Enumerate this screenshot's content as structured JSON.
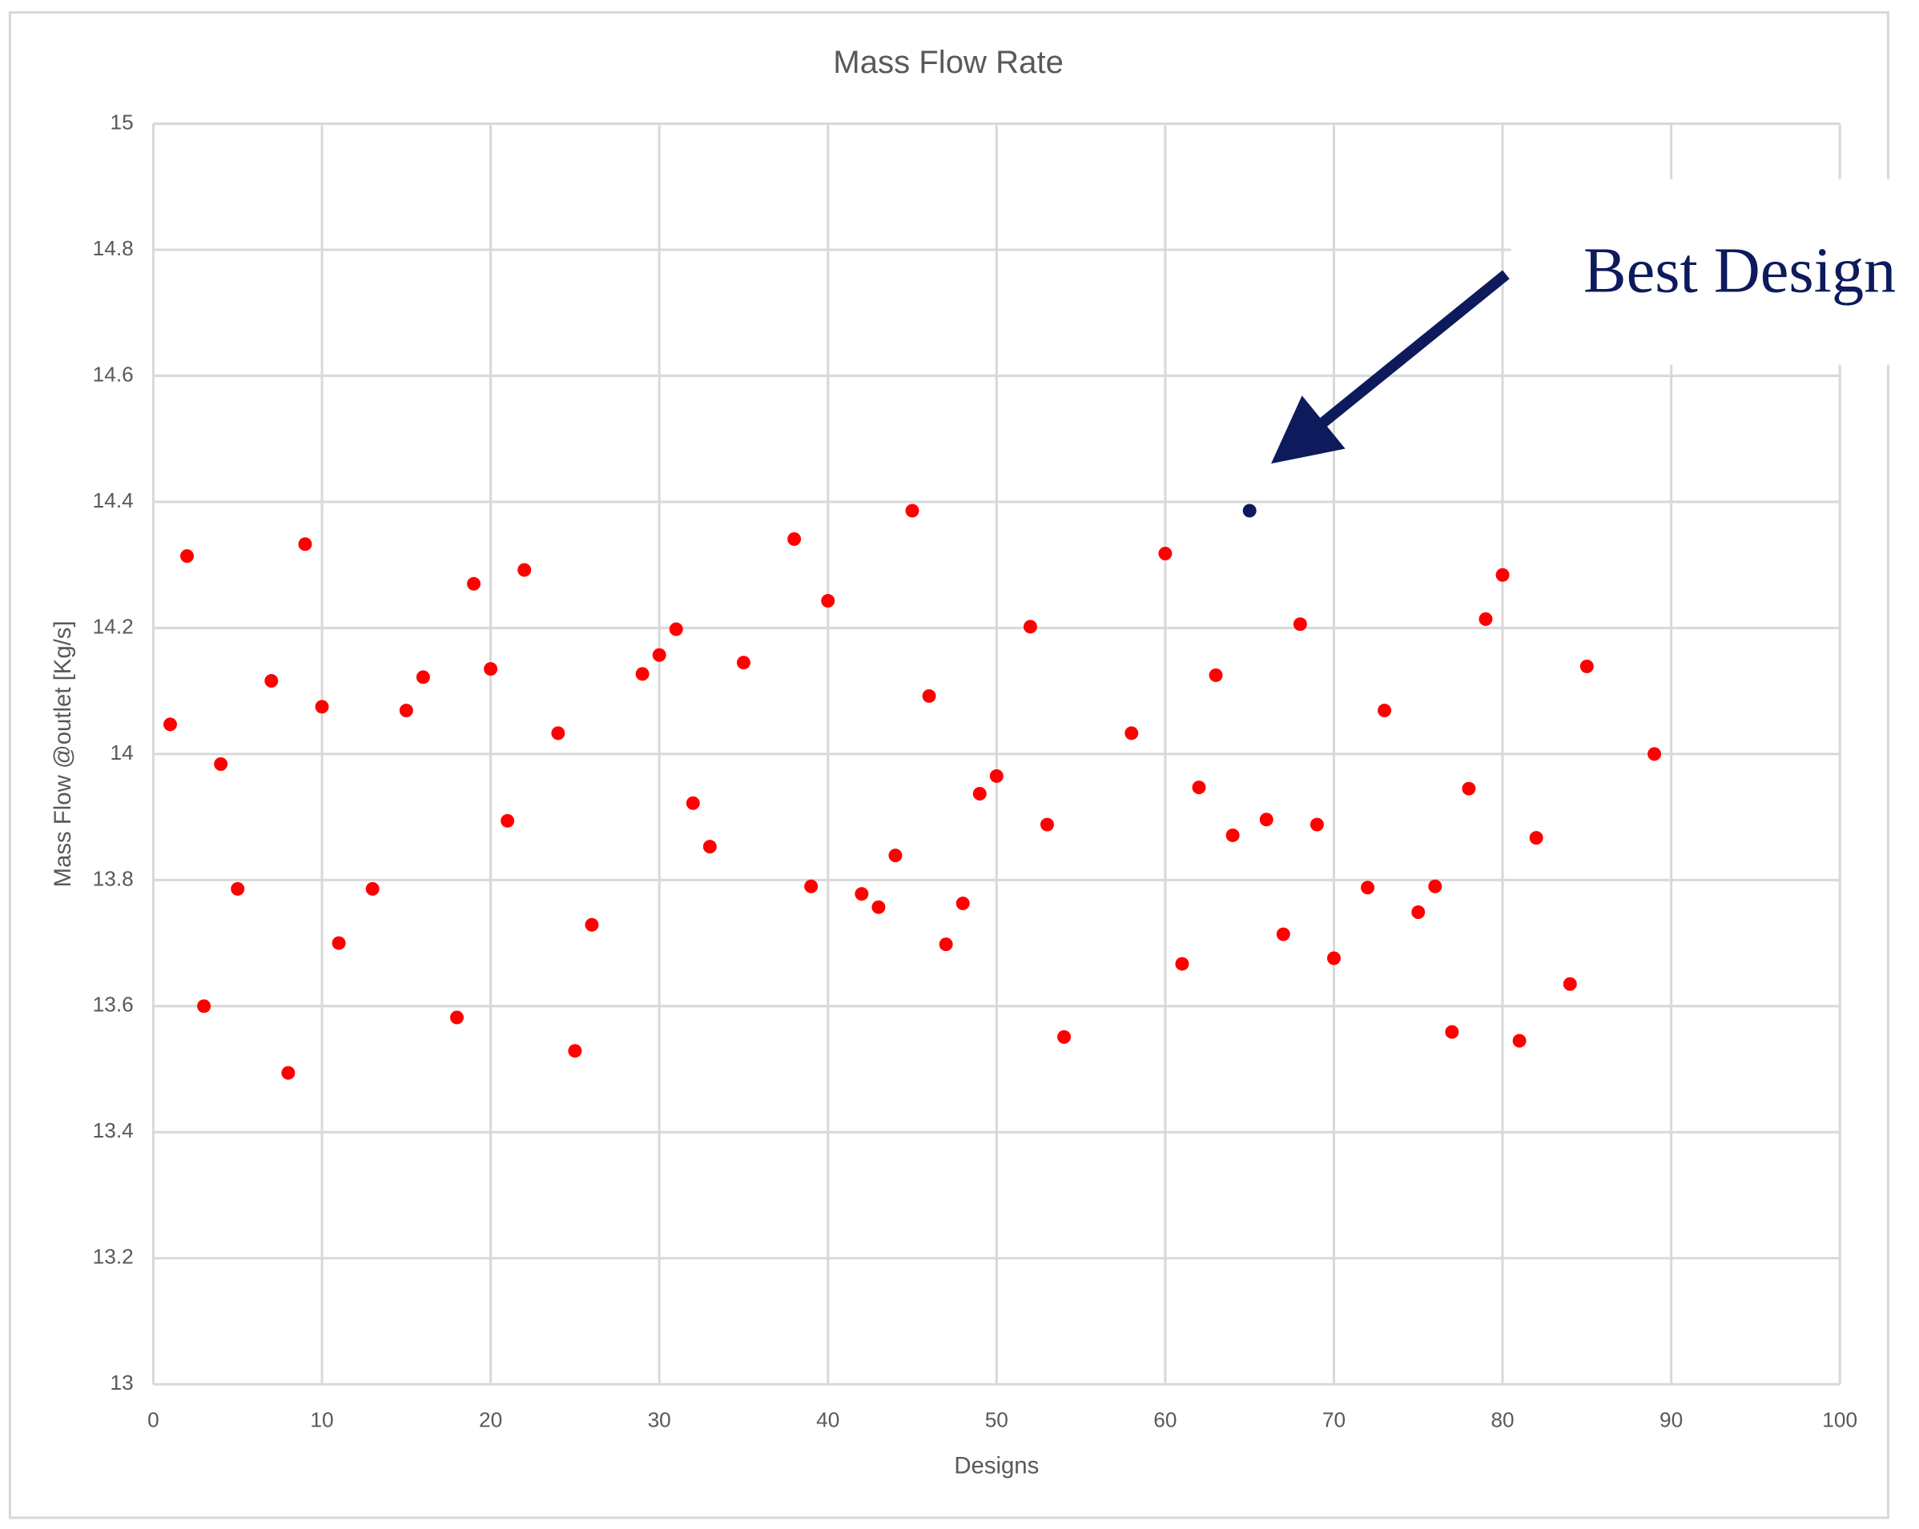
{
  "chart_data": {
    "type": "scatter",
    "title": "Mass Flow Rate",
    "x_label": "Designs",
    "y_label": "Mass Flow @outlet [Kg/s]",
    "annotation": "Best Design",
    "xlim": [
      0,
      100
    ],
    "xticks": [
      0,
      10,
      20,
      30,
      40,
      50,
      60,
      70,
      80,
      90,
      100
    ],
    "ylim": [
      13,
      15
    ],
    "yticks": [
      13,
      13.2,
      13.4,
      13.6,
      13.8,
      14,
      14.2,
      14.4,
      14.6,
      14.8,
      15
    ],
    "grid": true,
    "series": [
      {
        "color": "#ff0000",
        "x": [
          1,
          2,
          3,
          4,
          5,
          7,
          8,
          9,
          10,
          11,
          13,
          15,
          16,
          18,
          19,
          20,
          21,
          22,
          24,
          25,
          26,
          29,
          30,
          31,
          32,
          33,
          35,
          38,
          39,
          40,
          42,
          43,
          44,
          45,
          46,
          47,
          48,
          49,
          50,
          52,
          53,
          54,
          58,
          60,
          61,
          62,
          63,
          64,
          66,
          67,
          68,
          69,
          70,
          72,
          73,
          75,
          76,
          77,
          78,
          79,
          80,
          81,
          82,
          84,
          85,
          89
        ],
        "values": [
          14.047,
          14.314,
          13.6,
          13.984,
          13.786,
          14.116,
          13.494,
          14.333,
          14.075,
          13.7,
          13.786,
          14.069,
          14.122,
          13.582,
          14.27,
          14.135,
          13.894,
          14.292,
          14.033,
          13.529,
          13.729,
          14.127,
          14.157,
          14.198,
          13.922,
          13.853,
          14.145,
          14.341,
          13.79,
          14.243,
          13.778,
          13.757,
          13.839,
          14.386,
          14.092,
          13.698,
          13.763,
          13.937,
          13.965,
          14.202,
          13.888,
          13.551,
          14.033,
          14.318,
          13.667,
          13.947,
          14.125,
          13.871,
          13.896,
          13.714,
          14.206,
          13.888,
          13.676,
          13.788,
          14.069,
          13.749,
          13.79,
          13.559,
          13.945,
          14.214,
          14.284,
          13.545,
          13.867,
          13.635,
          14.139,
          14.0
        ]
      },
      {
        "color": "#0d1a5c",
        "x": [
          65
        ],
        "values": [
          14.386
        ]
      }
    ]
  }
}
